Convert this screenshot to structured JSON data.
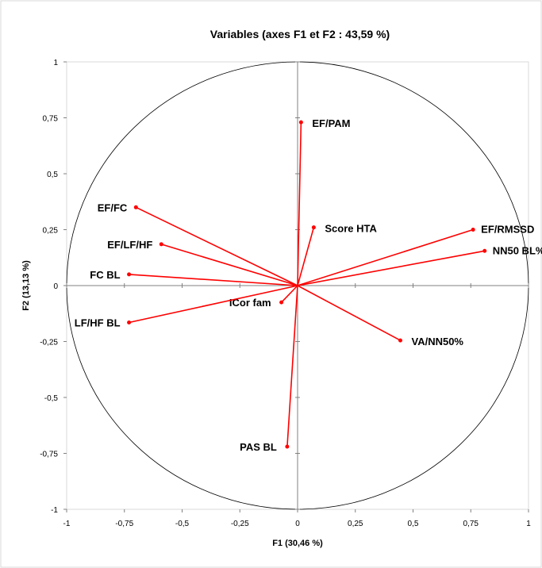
{
  "chart_data": {
    "type": "scatter",
    "title": "Variables (axes F1 et F2 : 43,59 %)",
    "xlabel": "F1 (30,46 %)",
    "ylabel": "F2 (13,13 %)",
    "xlim": [
      -1,
      1
    ],
    "ylim": [
      -1,
      1
    ],
    "x_ticks": [
      "-1",
      "-0,75",
      "-0,5",
      "-0,25",
      "0",
      "0,25",
      "0,5",
      "0,75",
      "1"
    ],
    "y_ticks": [
      "1",
      "0,75",
      "0,5",
      "0,25",
      "0",
      "-0,25",
      "-0,5",
      "-0,75",
      "-1"
    ],
    "correlation_circle": true,
    "vector_color": "#ff0000",
    "variables": [
      {
        "label": "EF/PAM",
        "x": 0.015,
        "y": 0.73
      },
      {
        "label": "Score HTA",
        "x": 0.07,
        "y": 0.26
      },
      {
        "label": "EF/RMSSD",
        "x": 0.76,
        "y": 0.25
      },
      {
        "label": "NN50 BL%",
        "x": 0.81,
        "y": 0.155
      },
      {
        "label": "EF/FC",
        "x": -0.7,
        "y": 0.35
      },
      {
        "label": "EF/LF/HF",
        "x": -0.59,
        "y": 0.185
      },
      {
        "label": "FC BL",
        "x": -0.73,
        "y": 0.05
      },
      {
        "label": "ICor fam",
        "x": -0.07,
        "y": -0.075
      },
      {
        "label": "LF/HF BL",
        "x": -0.73,
        "y": -0.165
      },
      {
        "label": "VA/NN50%",
        "x": 0.445,
        "y": -0.245
      },
      {
        "label": "PAS BL",
        "x": -0.045,
        "y": -0.72
      }
    ]
  }
}
